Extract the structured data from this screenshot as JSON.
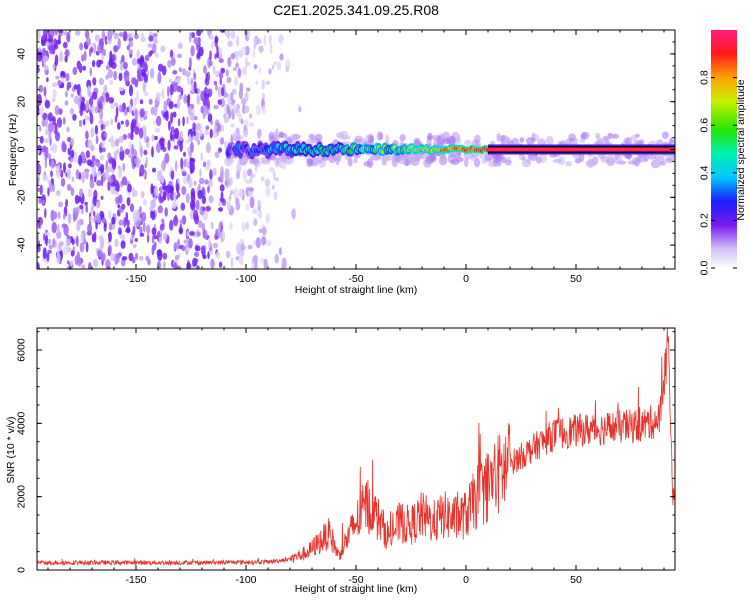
{
  "title": "C2E1.2025.341.09.25.R08",
  "colors": {
    "snr_line": "#e8322c",
    "ridge": "#ff1e3c",
    "axis": "#000000"
  },
  "chart_data": [
    {
      "type": "heatmap",
      "xlabel": "Height of straight line (km)",
      "ylabel": "Frequency (Hz)",
      "xlim": [
        -195,
        95
      ],
      "ylim": [
        -50,
        50
      ],
      "xticks": [
        -150,
        -100,
        -50,
        0,
        50
      ],
      "yticks": [
        -40,
        -20,
        0,
        20,
        40
      ],
      "grid": false,
      "colorbar": {
        "label": "Normalized spectral amplitude",
        "range": [
          0,
          1
        ],
        "ticks": [
          "0.0",
          "0.2",
          "0.4",
          "0.6",
          "0.8"
        ],
        "colormap": "white-purple-blue-cyan-green-yellow-orange-red-magenta"
      },
      "ridge_frequency_hz": 0,
      "features": {
        "noise_region_km": [
          -195,
          -85
        ],
        "signal_onset_km": -108,
        "saturated_from_km": 10
      }
    },
    {
      "type": "line",
      "xlabel": "Height of straight line (km)",
      "ylabel": "SNR (10 * v/v)",
      "xlim": [
        -195,
        95
      ],
      "ylim": [
        0,
        6600
      ],
      "xticks": [
        -150,
        -100,
        -50,
        0,
        50
      ],
      "yticks": [
        0,
        2000,
        4000,
        6000
      ],
      "grid": false,
      "series_profile": {
        "x": [
          -195,
          -120,
          -90,
          -80,
          -72,
          -66,
          -62,
          -58,
          -50,
          -45,
          -40,
          -35,
          -30,
          -25,
          -20,
          -15,
          -10,
          -5,
          0,
          5,
          10,
          15,
          20,
          30,
          40,
          50,
          60,
          70,
          80,
          88,
          92,
          94
        ],
        "y": [
          200,
          200,
          220,
          300,
          480,
          800,
          1000,
          400,
          1300,
          1800,
          1400,
          900,
          1300,
          1200,
          1500,
          1300,
          1500,
          1400,
          1500,
          2000,
          2300,
          2600,
          2900,
          3300,
          3700,
          3800,
          3850,
          3900,
          3950,
          4100,
          6300,
          2000
        ]
      }
    }
  ]
}
